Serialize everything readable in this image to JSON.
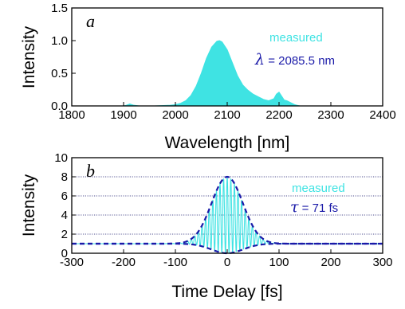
{
  "colors": {
    "measured": "#3fe3e3",
    "fit": "#1a1aa8",
    "axis": "#000000",
    "grid": "#1a1a6e"
  },
  "chart_data": [
    {
      "type": "area",
      "panel_label": "a",
      "xlabel": "Wavelength [nm]",
      "ylabel": "Intensity",
      "xlim": [
        1800,
        2400
      ],
      "ylim": [
        0,
        1.5
      ],
      "xticks": [
        "1800",
        "1900",
        "2000",
        "2100",
        "2200",
        "2300",
        "2400"
      ],
      "yticks": [
        "0.0",
        "0.5",
        "1.0",
        "1.5"
      ],
      "grid": false,
      "legend_position": "top-right",
      "series": [
        {
          "name": "measured",
          "x": [
            1800,
            1900,
            1905,
            1912,
            1920,
            1930,
            1960,
            1990,
            2000,
            2010,
            2020,
            2030,
            2040,
            2050,
            2060,
            2070,
            2080,
            2085,
            2090,
            2100,
            2110,
            2120,
            2130,
            2140,
            2150,
            2160,
            2170,
            2180,
            2190,
            2195,
            2200,
            2205,
            2210,
            2215,
            2220,
            2230,
            2235,
            2240,
            2260,
            2400
          ],
          "y": [
            0,
            0,
            0.01,
            0.03,
            0.01,
            0,
            0,
            0.01,
            0.02,
            0.04,
            0.08,
            0.16,
            0.3,
            0.5,
            0.73,
            0.9,
            0.99,
            1.0,
            0.98,
            0.86,
            0.66,
            0.46,
            0.32,
            0.24,
            0.18,
            0.14,
            0.1,
            0.08,
            0.11,
            0.18,
            0.21,
            0.15,
            0.09,
            0.08,
            0.06,
            0.02,
            0.01,
            0,
            0,
            0
          ]
        }
      ],
      "annotation": {
        "symbol": "λ",
        "text": " = 2085.5 nm"
      }
    },
    {
      "type": "area",
      "panel_label": "b",
      "xlabel": "Time Delay [fs]",
      "ylabel": "Intensity",
      "xlim": [
        -300,
        300
      ],
      "ylim": [
        0,
        10
      ],
      "xticks": [
        "-300",
        "-200",
        "-100",
        "0",
        "100",
        "200",
        "300"
      ],
      "yticks": [
        "0",
        "2",
        "4",
        "6",
        "8",
        "10"
      ],
      "grid": true,
      "grid_lines_y": [
        2,
        4,
        6,
        8
      ],
      "legend_position": "right",
      "series": [
        {
          "name": "measured",
          "type": "fringes",
          "peak": 8,
          "baseline": 1,
          "envelope_fwhm_fs": 71,
          "fringe_period_fs": 6.95
        },
        {
          "name": "",
          "type": "dashed-envelope",
          "peak": 8,
          "baseline": 1
        }
      ],
      "annotation": {
        "symbol": "τ",
        "text": " = 71 fs"
      }
    }
  ]
}
